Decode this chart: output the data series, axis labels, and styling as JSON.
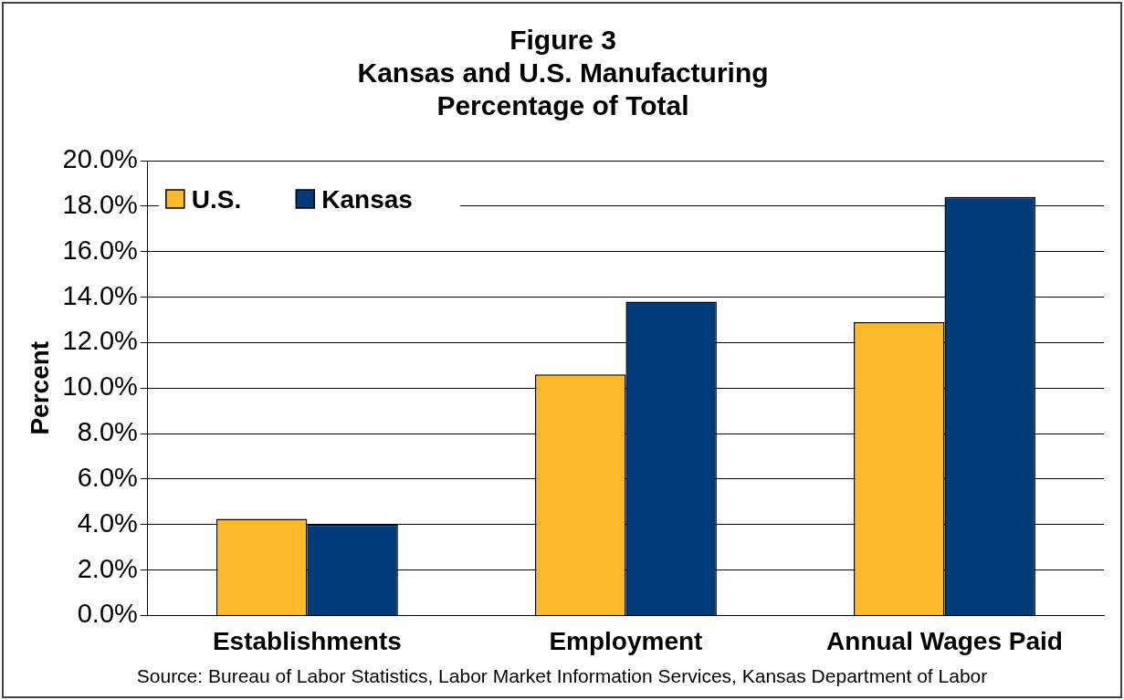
{
  "chart_data": {
    "type": "bar",
    "title": "Figure 3\nKansas and U.S. Manufacturing\nPercentage of Total",
    "ylabel": "Percent",
    "categories": [
      "Establishments",
      "Employment",
      "Annual Wages Paid"
    ],
    "series": [
      {
        "name": "U.S.",
        "color": "#fbb829",
        "values": [
          4.25,
          10.6,
          12.9
        ]
      },
      {
        "name": "Kansas",
        "color": "#003b7a",
        "values": [
          4.0,
          13.8,
          18.4
        ]
      }
    ],
    "ylim": [
      0,
      20
    ],
    "yticks": [
      {
        "value": 0,
        "label": "0.0%"
      },
      {
        "value": 2,
        "label": "2.0%"
      },
      {
        "value": 4,
        "label": "4.0%"
      },
      {
        "value": 6,
        "label": "6.0%"
      },
      {
        "value": 8,
        "label": "8.0%"
      },
      {
        "value": 10,
        "label": "10.0%"
      },
      {
        "value": 12,
        "label": "12.0%"
      },
      {
        "value": 14,
        "label": "14.0%"
      },
      {
        "value": 16,
        "label": "16.0%"
      },
      {
        "value": 18,
        "label": "18.0%"
      },
      {
        "value": 20,
        "label": "20.0%"
      }
    ],
    "grid": "y",
    "legend": "top left",
    "annotations": [
      "Source: Bureau of Labor Statistics, Labor Market Information Services, Kansas Department of Labor"
    ]
  }
}
